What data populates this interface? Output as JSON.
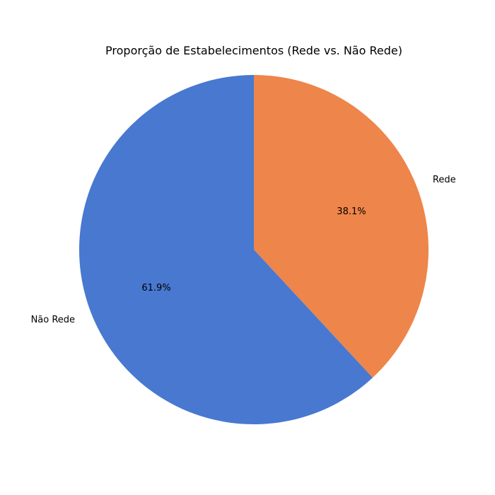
{
  "chart_data": {
    "type": "pie",
    "title": "Proporção de Estabelecimentos (Rede vs. Não Rede)",
    "categories": [
      "Rede",
      "Não Rede"
    ],
    "values": [
      38.1,
      61.9
    ],
    "value_labels": [
      "38.1%",
      "61.9%"
    ],
    "colors": [
      "#EE854A",
      "#4878D0"
    ],
    "start_angle_deg": 90,
    "direction": "clockwise",
    "legend": "none"
  }
}
